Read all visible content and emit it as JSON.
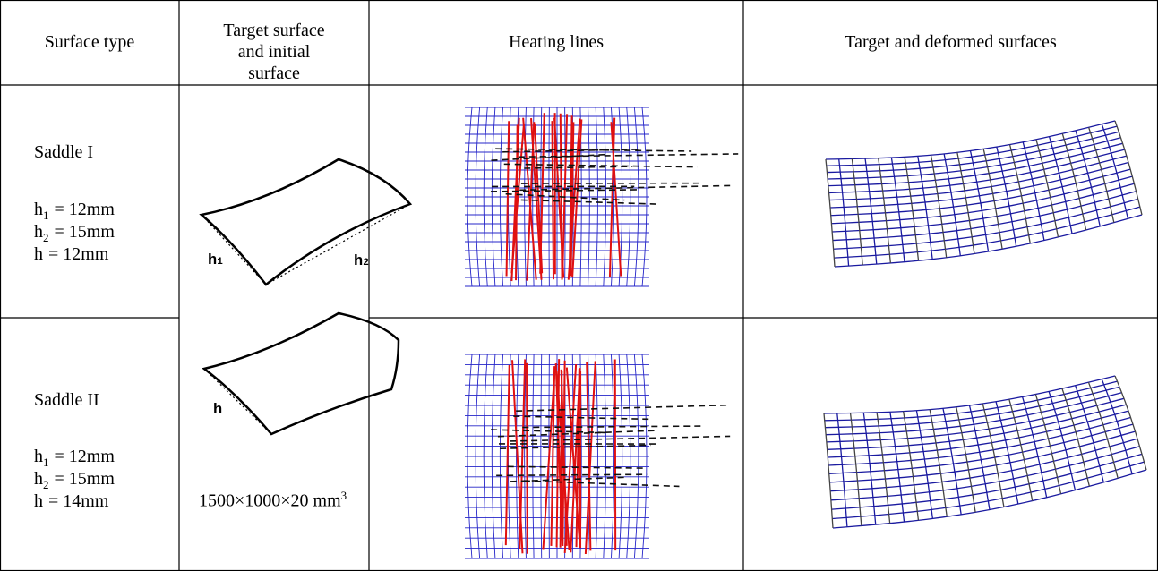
{
  "table": {
    "header": [
      "Surface type",
      "Target surface and initial surface",
      "Heating lines",
      "Target and deformed surfaces"
    ],
    "rows": [
      {
        "surface": "Saddle I",
        "params": [
          {
            "symbol": "h",
            "subscript": "1",
            "value": "= 12mm"
          },
          {
            "symbol": "h",
            "subscript": "2",
            "value": "= 15mm"
          },
          {
            "symbol": "h",
            "value": "= 12mm"
          }
        ]
      },
      {
        "surface": "Saddle II",
        "params": [
          {
            "symbol": "h",
            "subscript": "1",
            "value": "= 12mm"
          },
          {
            "symbol": "h",
            "subscript": "2",
            "value": "= 15mm"
          },
          {
            "symbol": "h",
            "value": "= 14mm"
          }
        ]
      }
    ]
  },
  "diagram": {
    "labels": [
      {
        "symbol": "h",
        "subscript": "1"
      },
      {
        "symbol": "h",
        "subscript": "2"
      },
      {
        "symbol": "h"
      }
    ],
    "dimensions": {
      "text": "1500×1000×20 mm",
      "superscript": "3"
    }
  }
}
